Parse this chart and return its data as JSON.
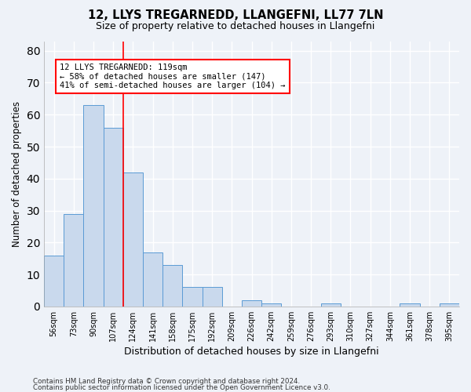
{
  "title1": "12, LLYS TREGARNEDD, LLANGEFNI, LL77 7LN",
  "title2": "Size of property relative to detached houses in Llangefni",
  "xlabel": "Distribution of detached houses by size in Llangefni",
  "ylabel": "Number of detached properties",
  "bins": [
    "56sqm",
    "73sqm",
    "90sqm",
    "107sqm",
    "124sqm",
    "141sqm",
    "158sqm",
    "175sqm",
    "192sqm",
    "209sqm",
    "226sqm",
    "242sqm",
    "259sqm",
    "276sqm",
    "293sqm",
    "310sqm",
    "327sqm",
    "344sqm",
    "361sqm",
    "378sqm",
    "395sqm"
  ],
  "values": [
    16,
    29,
    63,
    56,
    42,
    17,
    13,
    6,
    6,
    0,
    2,
    1,
    0,
    0,
    1,
    0,
    0,
    0,
    1,
    0,
    1
  ],
  "bar_color": "#c9d9ed",
  "bar_edge_color": "#5b9bd5",
  "annotation_line1": "12 LLYS TREGARNEDD: 119sqm",
  "annotation_line2": "← 58% of detached houses are smaller (147)",
  "annotation_line3": "41% of semi-detached houses are larger (104) →",
  "annotation_box_color": "white",
  "annotation_box_edge": "red",
  "vline_color": "red",
  "ylim": [
    0,
    83
  ],
  "yticks": [
    0,
    10,
    20,
    30,
    40,
    50,
    60,
    70,
    80
  ],
  "footer1": "Contains HM Land Registry data © Crown copyright and database right 2024.",
  "footer2": "Contains public sector information licensed under the Open Government Licence v3.0.",
  "bg_color": "#eef2f8",
  "grid_color": "white"
}
